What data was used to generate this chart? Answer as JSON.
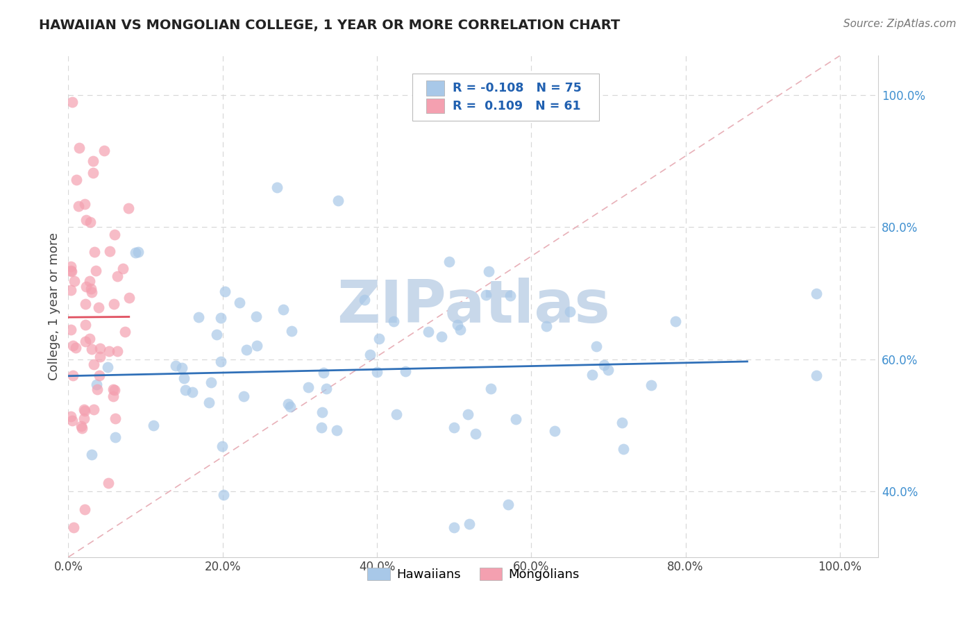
{
  "title": "HAWAIIAN VS MONGOLIAN COLLEGE, 1 YEAR OR MORE CORRELATION CHART",
  "source_text": "Source: ZipAtlas.com",
  "ylabel": "College, 1 year or more",
  "x_tick_labels": [
    "0.0%",
    "20.0%",
    "40.0%",
    "60.0%",
    "80.0%",
    "100.0%"
  ],
  "x_tick_vals": [
    0.0,
    0.2,
    0.4,
    0.6,
    0.8,
    1.0
  ],
  "y_tick_labels": [
    "100.0%",
    "80.0%",
    "60.0%",
    "40.0%"
  ],
  "y_tick_vals": [
    1.0,
    0.8,
    0.6,
    0.4
  ],
  "xlim": [
    0.0,
    1.05
  ],
  "ylim": [
    0.3,
    1.06
  ],
  "legend_labels": [
    "Hawaiians",
    "Mongolians"
  ],
  "legend_R": [
    "-0.108",
    "0.109"
  ],
  "legend_N": [
    "75",
    "61"
  ],
  "blue_scatter_color": "#a8c8e8",
  "pink_scatter_color": "#f4a0b0",
  "blue_line_color": "#3070b8",
  "pink_line_color": "#e05060",
  "diag_line_color": "#e8b0b8",
  "watermark": "ZIPatlas",
  "watermark_color": "#c8d8ea",
  "background_color": "#ffffff",
  "grid_color": "#d8d8d8",
  "ytick_color": "#4090d0",
  "xtick_color": "#444444"
}
